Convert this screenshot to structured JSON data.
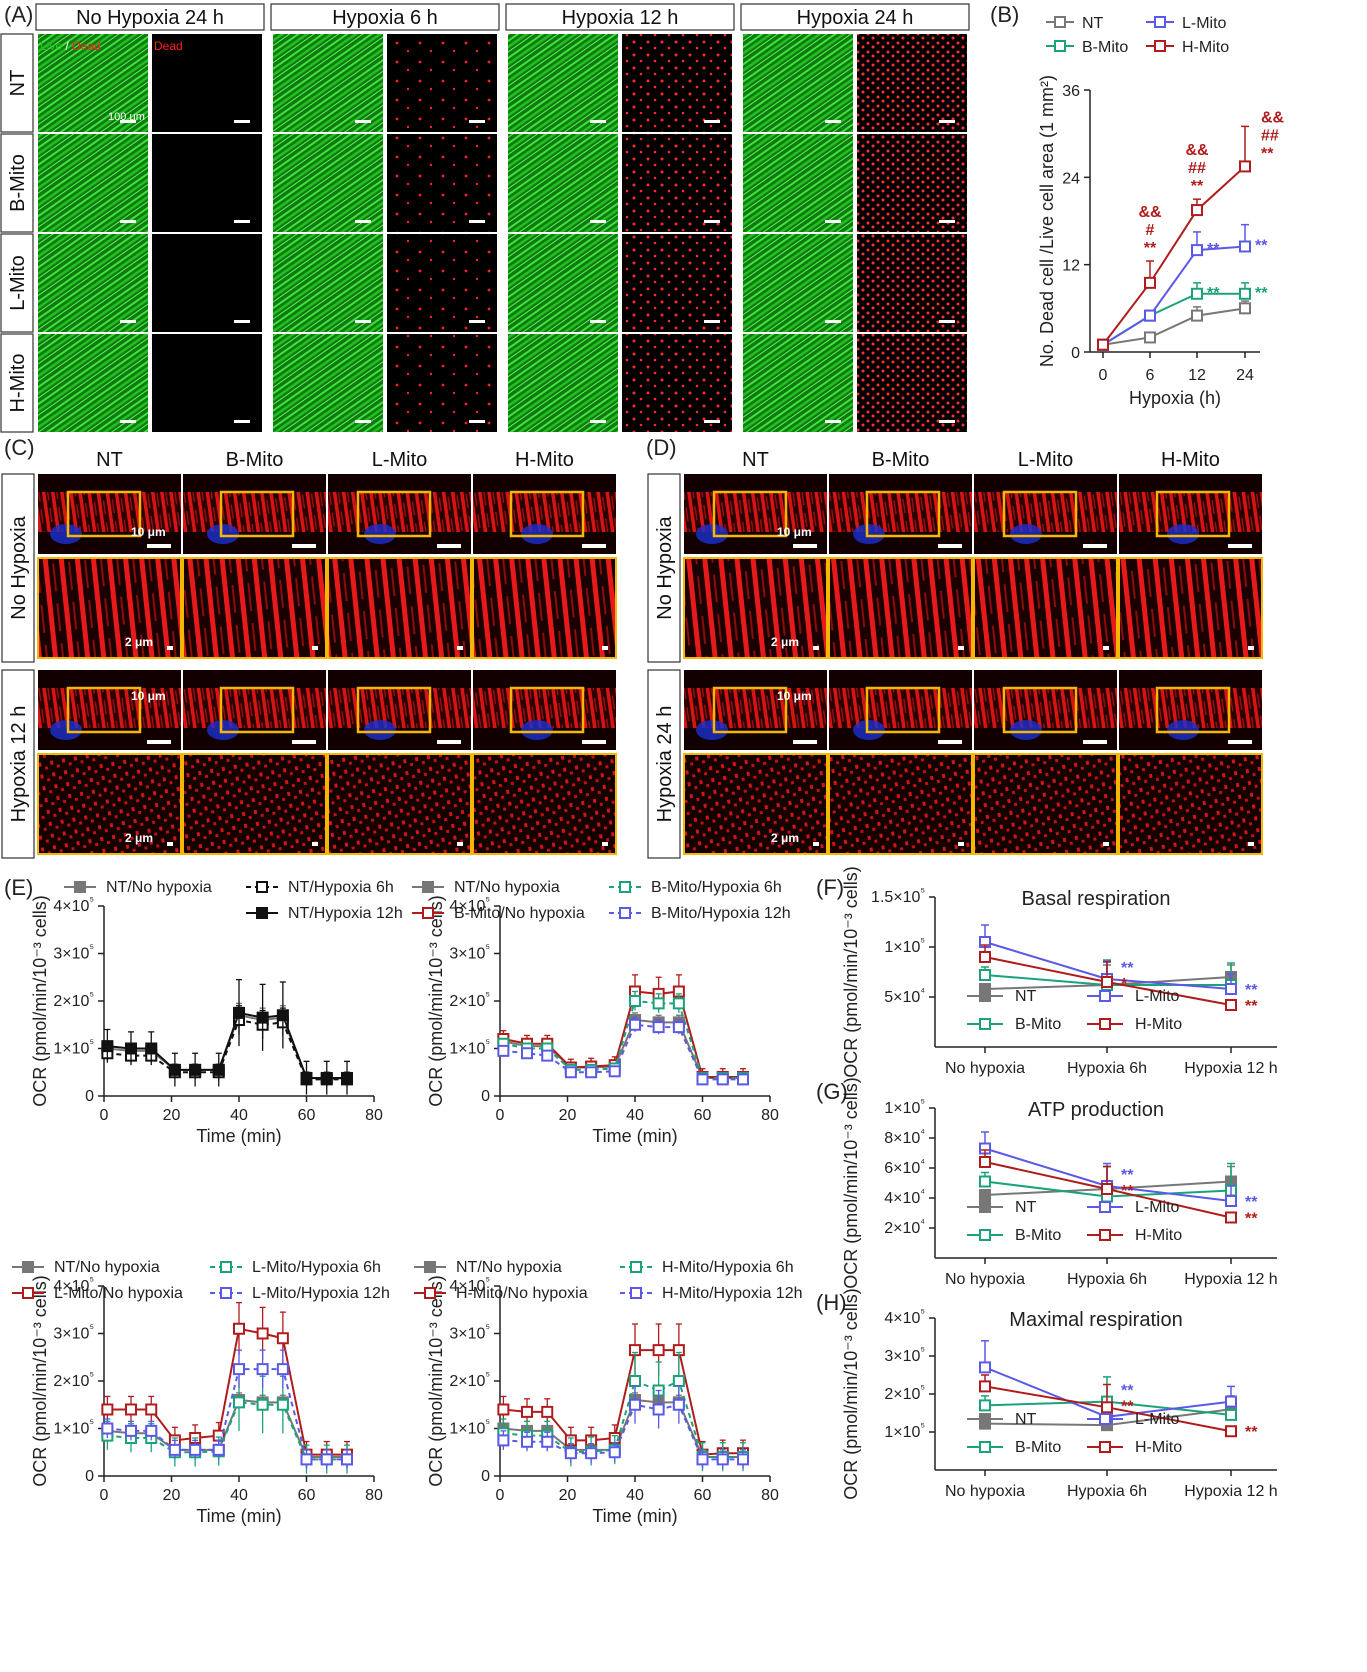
{
  "panel_letters": [
    "(A)",
    "(B)",
    "(C)",
    "(D)",
    "(E)",
    "(F)",
    "(G)",
    "(H)"
  ],
  "panelA": {
    "col_headers": [
      "No Hypoxia 24 h",
      "Hypoxia 6 h",
      "Hypoxia 12 h",
      "Hypoxia 24 h"
    ],
    "row_labels": [
      "NT",
      "B-Mito",
      "L-Mito",
      "H-Mito"
    ],
    "stain_live": "Live",
    "stain_sep": " / ",
    "stain_dead": "Dead",
    "dead_label": "Dead",
    "scale_bar": "100 μm",
    "colors": {
      "live": "#22c222",
      "dead": "#ff2020",
      "background": "#000000"
    }
  },
  "panelC": {
    "col_headers": [
      "NT",
      "B-Mito",
      "L-Mito",
      "H-Mito"
    ],
    "row_labels": [
      "No Hypoxia",
      "Hypoxia 12 h"
    ],
    "scale_top": "10 μm",
    "scale_zoom": "2 μm",
    "box_color": "#f5b800"
  },
  "panelD": {
    "col_headers": [
      "NT",
      "B-Mito",
      "L-Mito",
      "H-Mito"
    ],
    "row_labels": [
      "No Hypoxia",
      "Hypoxia 24 h"
    ],
    "scale_top": "10 μm",
    "scale_zoom": "2 μm",
    "box_color": "#f5b800"
  },
  "legend_groups": {
    "NT": {
      "name": "NT",
      "color": "#777777"
    },
    "B": {
      "name": "B-Mito",
      "color": "#1aa37a"
    },
    "L": {
      "name": "L-Mito",
      "color": "#5a5ae6"
    },
    "H": {
      "name": "H-Mito",
      "color": "#b01c1c"
    }
  },
  "chart_data": [
    {
      "id": "B",
      "type": "line",
      "xlabel": "Hypoxia (h)",
      "ylabel": "No. Dead cell /Live cell area (1 mm²)",
      "x": [
        0,
        6,
        12,
        24
      ],
      "xticks": [
        "0",
        "6",
        "12",
        "24"
      ],
      "yticks": [
        "0",
        "12",
        "24",
        "36"
      ],
      "ylim": [
        0,
        36
      ],
      "series": [
        {
          "name": "NT",
          "values": [
            1,
            2,
            5,
            6
          ],
          "errors": [
            0.3,
            0.4,
            1.2,
            1.0
          ]
        },
        {
          "name": "B-Mito",
          "values": [
            1,
            5,
            8,
            8
          ],
          "errors": [
            0.3,
            0.5,
            1.5,
            1.5
          ]
        },
        {
          "name": "L-Mito",
          "values": [
            1,
            5,
            14,
            14.5
          ],
          "errors": [
            0.3,
            0.6,
            2.5,
            3
          ]
        },
        {
          "name": "H-Mito",
          "values": [
            1,
            9.5,
            19.5,
            25.5
          ],
          "errors": [
            0.3,
            3,
            1.5,
            5.5
          ]
        }
      ],
      "annotations": [
        {
          "at": "6",
          "series": "H-Mito",
          "text": [
            "&&",
            "#",
            "**"
          ]
        },
        {
          "at": "12",
          "series": "H-Mito",
          "text": [
            "&&",
            "##",
            "**"
          ]
        },
        {
          "at": "24",
          "series": "H-Mito",
          "text": [
            "&&",
            "##",
            "**"
          ]
        },
        {
          "at": "12",
          "series": "L-Mito",
          "text": [
            "**"
          ]
        },
        {
          "at": "24",
          "series": "L-Mito",
          "text": [
            "**"
          ]
        },
        {
          "at": "12",
          "series": "B-Mito",
          "text": [
            "**"
          ]
        },
        {
          "at": "24",
          "series": "B-Mito",
          "text": [
            "**"
          ]
        }
      ]
    },
    {
      "id": "E1",
      "type": "line",
      "xlabel": "Time (min)",
      "ylabel": "OCR (pmol/min/10⁻³ cells)",
      "x": [
        1,
        8,
        14,
        21,
        27,
        34,
        40,
        47,
        53,
        60,
        66,
        72
      ],
      "xticks": [
        "0",
        "20",
        "40",
        "60",
        "80"
      ],
      "yticks": [
        "0",
        "1×10⁵",
        "2×10⁵",
        "3×10⁵",
        "4×10⁵"
      ],
      "ylim": [
        0,
        400000
      ],
      "xlim": [
        0,
        80
      ],
      "legend": [
        "NT/No hypoxia",
        "NT/Hypoxia 6h",
        "NT/Hypoxia 12h"
      ],
      "series": [
        {
          "name": "NT/No hypoxia",
          "values": [
            100000,
            95000,
            95000,
            55000,
            55000,
            55000,
            170000,
            160000,
            165000,
            38000,
            37000,
            37000
          ],
          "err": 25000
        },
        {
          "name": "NT/Hypoxia 6h",
          "values": [
            90000,
            85000,
            85000,
            50000,
            50000,
            50000,
            160000,
            150000,
            155000,
            35000,
            35000,
            35000
          ],
          "err": 30000
        },
        {
          "name": "NT/Hypoxia 12h",
          "values": [
            105000,
            100000,
            100000,
            55000,
            55000,
            55000,
            175000,
            165000,
            170000,
            38000,
            38000,
            38000
          ],
          "err": 70000
        }
      ]
    },
    {
      "id": "E2",
      "type": "line",
      "xlabel": "Time (min)",
      "ylabel": "OCR (pmol/min/10⁻³ cells)",
      "x": [
        1,
        8,
        14,
        21,
        27,
        34,
        40,
        47,
        53,
        60,
        66,
        72
      ],
      "xticks": [
        "0",
        "20",
        "40",
        "60",
        "80"
      ],
      "yticks": [
        "0",
        "1×10⁵",
        "2×10⁵",
        "3×10⁵",
        "4×10⁵"
      ],
      "ylim": [
        0,
        400000
      ],
      "xlim": [
        0,
        80
      ],
      "legend": [
        "NT/No hypoxia",
        "B-Mito/No hypoxia",
        "B-Mito/Hypoxia 6h",
        "B-Mito/Hypoxia 12h"
      ],
      "series": [
        {
          "name": "NT/No hypoxia",
          "values": [
            115000,
            105000,
            105000,
            60000,
            60000,
            62000,
            160000,
            155000,
            155000,
            38000,
            38000,
            38000
          ],
          "err": 15000
        },
        {
          "name": "B-Mito/No hypoxia",
          "values": [
            120000,
            110000,
            110000,
            60000,
            62000,
            65000,
            220000,
            215000,
            220000,
            40000,
            40000,
            40000
          ],
          "err": 35000
        },
        {
          "name": "B-Mito/Hypoxia 6h",
          "values": [
            110000,
            100000,
            100000,
            55000,
            55000,
            58000,
            200000,
            195000,
            195000,
            38000,
            38000,
            38000
          ],
          "err": 20000
        },
        {
          "name": "B-Mito/Hypoxia 12h",
          "values": [
            95000,
            90000,
            85000,
            50000,
            50000,
            52000,
            150000,
            145000,
            145000,
            35000,
            35000,
            35000
          ],
          "err": 15000
        }
      ]
    },
    {
      "id": "E3",
      "type": "line",
      "xlabel": "Time (min)",
      "ylabel": "OCR (pmol/min/10⁻³ cells)",
      "x": [
        1,
        8,
        14,
        21,
        27,
        34,
        40,
        47,
        53,
        60,
        66,
        72
      ],
      "xticks": [
        "0",
        "20",
        "40",
        "60",
        "80"
      ],
      "yticks": [
        "0",
        "1×10⁵",
        "2×10⁵",
        "3×10⁵",
        "4×10⁵"
      ],
      "ylim": [
        0,
        400000
      ],
      "xlim": [
        0,
        80
      ],
      "legend": [
        "NT/No hypoxia",
        "L-Mito/No hypoxia",
        "L-Mito/Hypoxia 6h",
        "L-Mito/Hypoxia 12h"
      ],
      "series": [
        {
          "name": "NT/No hypoxia",
          "values": [
            95000,
            90000,
            90000,
            55000,
            55000,
            55000,
            160000,
            155000,
            155000,
            40000,
            40000,
            40000
          ],
          "err": 15000
        },
        {
          "name": "L-Mito/No hypoxia",
          "values": [
            140000,
            140000,
            140000,
            75000,
            80000,
            85000,
            310000,
            300000,
            290000,
            45000,
            45000,
            45000
          ],
          "err": 55000
        },
        {
          "name": "L-Mito/Hypoxia 6h",
          "values": [
            85000,
            80000,
            80000,
            50000,
            50000,
            52000,
            155000,
            150000,
            150000,
            35000,
            35000,
            35000
          ],
          "err": 60000
        },
        {
          "name": "L-Mito/Hypoxia 12h",
          "values": [
            100000,
            95000,
            95000,
            55000,
            55000,
            55000,
            225000,
            225000,
            225000,
            35000,
            35000,
            35000
          ],
          "err": 40000
        }
      ]
    },
    {
      "id": "E4",
      "type": "line",
      "xlabel": "Time (min)",
      "ylabel": "OCR (pmol/min/10⁻³ cells)",
      "x": [
        1,
        8,
        14,
        21,
        27,
        34,
        40,
        47,
        53,
        60,
        66,
        72
      ],
      "xticks": [
        "0",
        "20",
        "40",
        "60",
        "80"
      ],
      "yticks": [
        "0",
        "1×10⁵",
        "2×10⁵",
        "3×10⁵",
        "4×10⁵"
      ],
      "ylim": [
        0,
        400000
      ],
      "xlim": [
        0,
        80
      ],
      "legend": [
        "NT/No hypoxia",
        "H-Mito/No hypoxia",
        "H-Mito/Hypoxia 6h",
        "H-Mito/Hypoxia 12h"
      ],
      "series": [
        {
          "name": "NT/No hypoxia",
          "values": [
            100000,
            95000,
            95000,
            55000,
            55000,
            55000,
            160000,
            155000,
            155000,
            40000,
            40000,
            40000
          ],
          "err": 15000
        },
        {
          "name": "H-Mito/No hypoxia",
          "values": [
            140000,
            135000,
            135000,
            75000,
            75000,
            80000,
            265000,
            265000,
            265000,
            45000,
            48000,
            48000
          ],
          "err": 55000
        },
        {
          "name": "H-Mito/Hypoxia 6h",
          "values": [
            90000,
            85000,
            85000,
            50000,
            52000,
            55000,
            200000,
            180000,
            200000,
            40000,
            40000,
            40000
          ],
          "err": 60000
        },
        {
          "name": "H-Mito/Hypoxia 12h",
          "values": [
            75000,
            72000,
            72000,
            48000,
            48000,
            50000,
            150000,
            140000,
            150000,
            35000,
            35000,
            35000
          ],
          "err": 40000
        }
      ]
    },
    {
      "id": "F",
      "type": "line",
      "title": "Basal respiration",
      "ylabel": "OCR (pmol/min/10⁻³ cells)",
      "categories": [
        "No hypoxia",
        "Hypoxia 6h",
        "Hypoxia 12 h"
      ],
      "yticks": [
        "5×10⁴",
        "1×10⁵",
        "1.5×10⁵"
      ],
      "ytick_values": [
        50000,
        100000,
        150000
      ],
      "ylim": [
        0,
        150000
      ],
      "series": [
        {
          "name": "NT",
          "values": [
            58000,
            62000,
            70000
          ],
          "errors": [
            5000,
            20000,
            12000
          ]
        },
        {
          "name": "B-Mito",
          "values": [
            72000,
            62000,
            62000
          ],
          "errors": [
            8000,
            25000,
            22000
          ]
        },
        {
          "name": "L-Mito",
          "values": [
            105000,
            68000,
            58000
          ],
          "errors": [
            17000,
            18000,
            15000
          ]
        },
        {
          "name": "H-Mito",
          "values": [
            90000,
            65000,
            42000
          ],
          "errors": [
            12000,
            20000,
            5000
          ]
        }
      ],
      "annotations": [
        {
          "at": "Hypoxia 6h",
          "texts": [
            {
              "text": "**",
              "series": "L-Mito"
            },
            {
              "text": "*",
              "series": "H-Mito"
            }
          ]
        },
        {
          "at": "Hypoxia 12 h",
          "texts": [
            {
              "text": "**",
              "series": "L-Mito"
            },
            {
              "text": "**",
              "series": "H-Mito"
            }
          ]
        }
      ]
    },
    {
      "id": "G",
      "type": "line",
      "title": "ATP production",
      "ylabel": "OCR (pmol/min/10⁻³ cells)",
      "categories": [
        "No hypoxia",
        "Hypoxia 6h",
        "Hypoxia 12 h"
      ],
      "yticks": [
        "2×10⁴",
        "4×10⁴",
        "6×10⁴",
        "8×10⁴",
        "1×10⁵"
      ],
      "ytick_values": [
        20000,
        40000,
        60000,
        80000,
        100000
      ],
      "ylim": [
        0,
        100000
      ],
      "series": [
        {
          "name": "NT",
          "values": [
            42000,
            46000,
            51000
          ],
          "errors": [
            3000,
            15000,
            10000
          ]
        },
        {
          "name": "B-Mito",
          "values": [
            51000,
            41000,
            45000
          ],
          "errors": [
            6000,
            20000,
            18000
          ]
        },
        {
          "name": "L-Mito",
          "values": [
            73000,
            48000,
            38000
          ],
          "errors": [
            11000,
            15000,
            10000
          ]
        },
        {
          "name": "H-Mito",
          "values": [
            64000,
            46000,
            27000
          ],
          "errors": [
            8000,
            15000,
            3000
          ]
        }
      ],
      "annotations": [
        {
          "at": "Hypoxia 6h",
          "texts": [
            {
              "text": "**",
              "series": "L-Mito"
            },
            {
              "text": "**",
              "series": "H-Mito"
            }
          ]
        },
        {
          "at": "Hypoxia 12 h",
          "texts": [
            {
              "text": "**",
              "series": "L-Mito"
            },
            {
              "text": "**",
              "series": "H-Mito"
            }
          ]
        }
      ]
    },
    {
      "id": "H",
      "type": "line",
      "title": "Maximal respiration",
      "ylabel": "OCR (pmol/min/10⁻³ cells)",
      "categories": [
        "No hypoxia",
        "Hypoxia 6h",
        "Hypoxia 12 h"
      ],
      "yticks": [
        "1×10⁵",
        "2×10⁵",
        "3×10⁵",
        "4×10⁵"
      ],
      "ytick_values": [
        100000,
        200000,
        300000,
        400000
      ],
      "ylim": [
        0,
        400000
      ],
      "series": [
        {
          "name": "NT",
          "values": [
            122000,
            118000,
            160000
          ],
          "errors": [
            10000,
            30000,
            35000
          ]
        },
        {
          "name": "B-Mito",
          "values": [
            170000,
            180000,
            145000
          ],
          "errors": [
            25000,
            65000,
            40000
          ]
        },
        {
          "name": "L-Mito",
          "values": [
            270000,
            140000,
            180000
          ],
          "errors": [
            70000,
            30000,
            40000
          ]
        },
        {
          "name": "H-Mito",
          "values": [
            220000,
            165000,
            102000
          ],
          "errors": [
            30000,
            60000,
            8000
          ]
        }
      ],
      "annotations": [
        {
          "at": "Hypoxia 6h",
          "texts": [
            {
              "text": "**",
              "series": "L-Mito"
            },
            {
              "text": "**",
              "series": "H-Mito"
            }
          ]
        },
        {
          "at": "Hypoxia 12 h",
          "texts": [
            {
              "text": "**",
              "series": "H-Mito"
            }
          ]
        }
      ]
    }
  ]
}
